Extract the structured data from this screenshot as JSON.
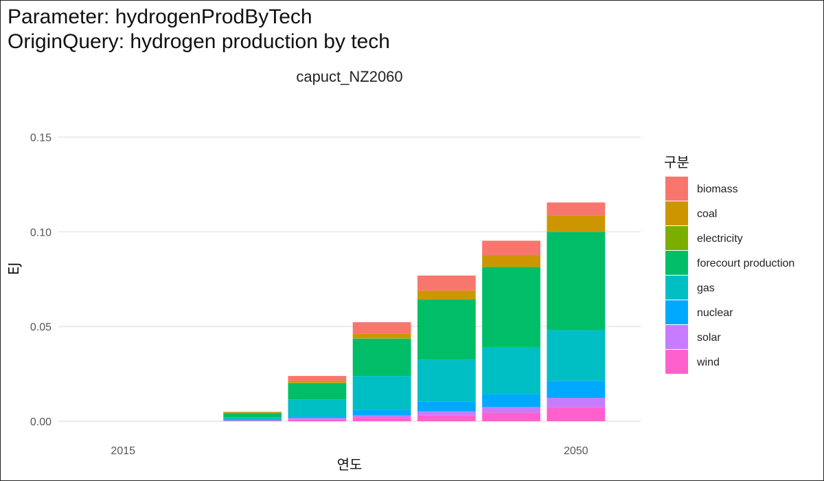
{
  "header": {
    "line1": "Parameter: hydrogenProdByTech",
    "line2": "OriginQuery: hydrogen production by tech"
  },
  "chart_data": {
    "type": "bar",
    "stacked": true,
    "title": "capuct_NZ2060",
    "xlabel": "연도",
    "ylabel": "EJ",
    "legend_title": "구분",
    "legend_position": "right",
    "grid": true,
    "ylim": [
      0,
      0.15
    ],
    "yticks": [
      0.0,
      0.05,
      0.1,
      0.15
    ],
    "ytick_labels": [
      "0.00",
      "0.05",
      "0.10",
      "0.15"
    ],
    "xticks": [
      2015,
      2050
    ],
    "xlim": [
      2010,
      2055
    ],
    "x": [
      2015,
      2020,
      2025,
      2030,
      2035,
      2040,
      2045,
      2050
    ],
    "series": [
      {
        "name": "wind",
        "color": "#FF61CC",
        "values": [
          0,
          0,
          0.0003,
          0.001,
          0.0018,
          0.003,
          0.0045,
          0.0075
        ]
      },
      {
        "name": "solar",
        "color": "#C77CFF",
        "values": [
          0,
          0,
          0.0002,
          0.0007,
          0.0013,
          0.0022,
          0.003,
          0.0048
        ]
      },
      {
        "name": "nuclear",
        "color": "#00A9FF",
        "values": [
          0,
          0,
          0.0004,
          0.0008,
          0.003,
          0.005,
          0.0068,
          0.009
        ]
      },
      {
        "name": "gas",
        "color": "#00BFC4",
        "values": [
          0,
          0,
          0.0012,
          0.009,
          0.0178,
          0.0222,
          0.0249,
          0.0268
        ]
      },
      {
        "name": "forecourt production",
        "color": "#00BE67",
        "values": [
          0,
          0,
          0.0022,
          0.0085,
          0.0197,
          0.0318,
          0.0422,
          0.0518
        ]
      },
      {
        "name": "electricity",
        "color": "#7CAE00",
        "values": [
          0,
          0,
          0.0002,
          0.0004,
          0.0002,
          0.0002,
          0.0002,
          0.0002
        ]
      },
      {
        "name": "coal",
        "color": "#CD9600",
        "values": [
          0,
          0,
          0.0003,
          0.0009,
          0.0025,
          0.0046,
          0.006,
          0.0086
        ]
      },
      {
        "name": "biomass",
        "color": "#F8766D",
        "values": [
          0,
          0,
          0.0002,
          0.0026,
          0.006,
          0.0079,
          0.0077,
          0.0068
        ]
      }
    ]
  }
}
